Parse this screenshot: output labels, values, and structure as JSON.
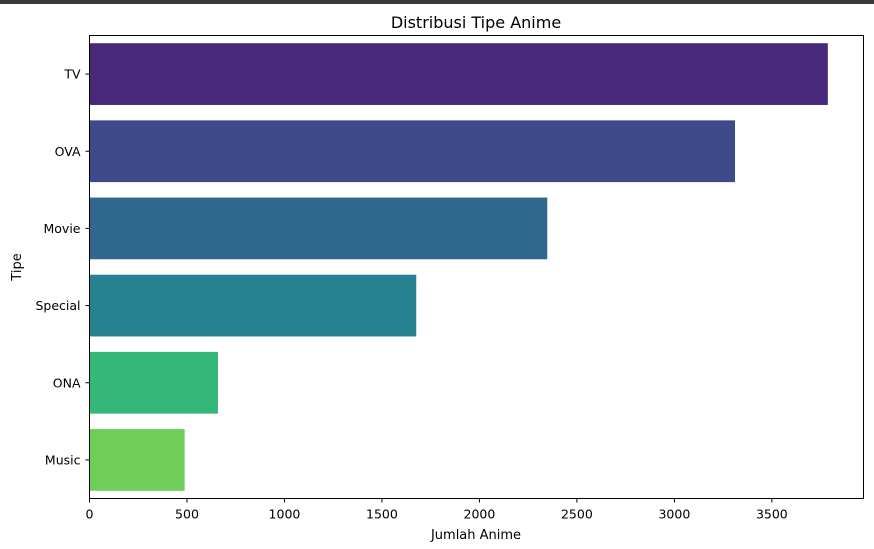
{
  "chart_data": {
    "type": "bar",
    "orientation": "horizontal",
    "title": "Distribusi Tipe Anime",
    "xlabel": "Jumlah Anime",
    "ylabel": "Tipe",
    "categories": [
      "TV",
      "OVA",
      "Movie",
      "Special",
      "ONA",
      "Music"
    ],
    "values": [
      3787,
      3311,
      2348,
      1676,
      659,
      488
    ],
    "colors": [
      "#482878",
      "#3e4a89",
      "#31688e",
      "#26828e",
      "#35b779",
      "#6ece58"
    ],
    "xlim": [
      0,
      3970
    ],
    "xticks": [
      0,
      500,
      1000,
      1500,
      2000,
      2500,
      3000,
      3500
    ],
    "grid": false
  }
}
